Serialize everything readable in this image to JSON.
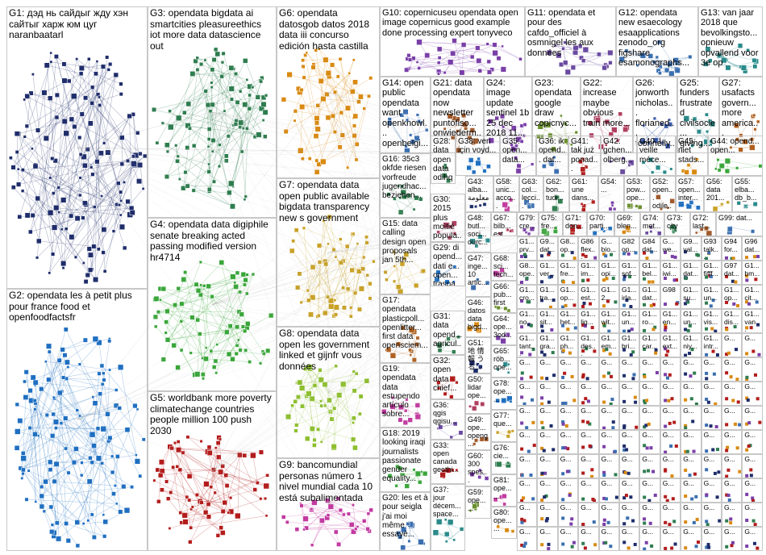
{
  "graph": {
    "edge_color": "#b4b4b4",
    "groups": [
      {
        "id": "G1",
        "label": "G1: дэд нь сайдыг жду хэн сайтыг харж юм цуг naranbaatarl",
        "color": "#1f2d6b"
      },
      {
        "id": "G2",
        "label": "G2: opendata les à petit plus pour france food et openfoodfactsfr",
        "color": "#1f6fc1"
      },
      {
        "id": "G3",
        "label": "G3: opendata bigdata ai smartcities pleasureethics iot more data datascience out",
        "color": "#2f7d4f"
      },
      {
        "id": "G4",
        "label": "G4: opendata data digiphile senate breaking acted passing modified version hr4714",
        "color": "#3aa63a"
      },
      {
        "id": "G5",
        "label": "G5: worldbank more poverty climatechange countries people million 100 push 2030",
        "color": "#b31c1c"
      },
      {
        "id": "G6",
        "label": "G6: opendata datosgob datos 2018 data iii concurso edición hasta castilla",
        "color": "#d98a12"
      },
      {
        "id": "G7",
        "label": "G7: opendata data open public available bigdata transparency new s government",
        "color": "#c9a227"
      },
      {
        "id": "G8",
        "label": "G8: opendata data open les government linked et gijnfr vous données",
        "color": "#8dbf2e"
      },
      {
        "id": "G9",
        "label": "G9: bancomundial personas número 1 nivel mundial cada 10 está subalimentada",
        "color": "#c23aa0"
      },
      {
        "id": "G10",
        "label": "G10: copernicuseu opendata open image copernicus good example done processing expert tonyveco",
        "color": "#7a3fa8"
      },
      {
        "id": "G11",
        "label": "G11: opendata et pour des cafdo_officiel à osmnigel les aux données",
        "color": "#6a4aa0"
      },
      {
        "id": "G12",
        "label": "G12: opendata new esaecology esaapplications zenodo_org figshare esamonographs...",
        "color": "#3b6fb0"
      },
      {
        "id": "G13",
        "label": "G13: van jaar 2018 que bevolkingsto... opnieuw opvallend voor 3e op",
        "color": "#2a8a8a"
      },
      {
        "id": "G14",
        "label": "G14: open public opendata want openknowl... openbelgi...",
        "color": "#3b6fb0"
      },
      {
        "id": "G21",
        "label": "G21: data opendata now newsletter puntofiso... onwiederm...",
        "color": "#a05a2c"
      },
      {
        "id": "G24",
        "label": "G24: image update sentinel 1b 25 dec 2018 11...",
        "color": "#7a3fa8"
      },
      {
        "id": "G23",
        "label": "G23: opendata google draw copicnyc...",
        "color": "#6a8f2e"
      },
      {
        "id": "G22",
        "label": "G22: increase maybe obvious train more...",
        "color": "#b04060"
      },
      {
        "id": "G26",
        "label": "G26: jonworth nicholas... florianed... tconnelly...",
        "color": "#4060b0"
      },
      {
        "id": "G25",
        "label": "G25: funders frustrated civilsocie... giving...",
        "color": "#2a8a8a"
      },
      {
        "id": "G27",
        "label": "G27: usafacts govern... more america...",
        "color": "#b06020"
      },
      {
        "id": "G16",
        "label": "G16: 35c3 okfde riesen vorfreude jugendhac... beziehen...",
        "color": "#2f7d4f"
      },
      {
        "id": "G28",
        "label": "G28: data opendata odihq open...",
        "color": "#2f7d4f"
      },
      {
        "id": "G38",
        "label": "G38: veri için voyd...",
        "color": "#1f6fc1"
      },
      {
        "id": "G35",
        "label": "G35: open... data...",
        "color": "#7a3fa8"
      },
      {
        "id": "G36",
        "label": "G36: ik opend... dat...",
        "color": "#3b6fb0"
      },
      {
        "id": "G41",
        "label": "G41: tak już ponad...",
        "color": "#b31c1c"
      },
      {
        "id": "G42",
        "label": "G42: gchen... olberg...",
        "color": "#6a4aa0"
      },
      {
        "id": "G40",
        "label": "G40: l veille méce...",
        "color": "#2a8a8a"
      },
      {
        "id": "G45",
        "label": "G45: niet stads...",
        "color": "#d98a12"
      },
      {
        "id": "G44",
        "label": "G44: opend... open...",
        "color": "#3aa63a"
      },
      {
        "id": "G30",
        "label": "G30: 2015 plus moitié popula...",
        "color": "#b04060"
      },
      {
        "id": "G43",
        "label": "G43: alba... معلومة",
        "color": "#1f2d6b"
      },
      {
        "id": "G58",
        "label": "G58: unic... acco...",
        "color": "#c23aa0"
      },
      {
        "id": "G63",
        "label": "G63: col... lecci...",
        "color": "#3b6fb0"
      },
      {
        "id": "G62",
        "label": "G62: bon... tudi...",
        "color": "#2f7d4f"
      },
      {
        "id": "G61",
        "label": "G61: une dans...",
        "color": "#b31c1c"
      },
      {
        "id": "G54",
        "label": "G54: ...",
        "color": "#7a3fa8"
      },
      {
        "id": "G53",
        "label": "G53: pow... ope...",
        "color": "#6a8f2e"
      },
      {
        "id": "G52",
        "label": "G52: open... odile...",
        "color": "#a05a2c"
      },
      {
        "id": "G57",
        "label": "G57: open... inter...",
        "color": "#1f6fc1"
      },
      {
        "id": "G56",
        "label": "G56: data 201...",
        "color": "#c9a227"
      },
      {
        "id": "G55",
        "label": "G55: elba... db_b...",
        "color": "#2a8a8a"
      },
      {
        "id": "G15",
        "label": "G15: data calling design open proposals jan 5th...",
        "color": "#c9a227"
      },
      {
        "id": "G48",
        "label": "G48: butl... soci... ourc...",
        "color": "#2a8a8a"
      },
      {
        "id": "G67",
        "label": "G67: bilb... est...",
        "color": "#b04060"
      },
      {
        "id": "G79",
        "label": "G79: cre... ...",
        "color": "#7a3fa8"
      },
      {
        "id": "G75",
        "label": "G75: fre... ...",
        "color": "#3aa63a"
      },
      {
        "id": "G71",
        "label": "G71: don...",
        "color": "#b31c1c"
      },
      {
        "id": "G70",
        "label": "G70: parti...",
        "color": "#1f6fc1"
      },
      {
        "id": "G69",
        "label": "G69: blen...",
        "color": "#d98a12"
      },
      {
        "id": "G74",
        "label": "G74: met...",
        "color": "#6a4aa0"
      },
      {
        "id": "G73",
        "label": "G73: city",
        "color": "#2f7d4f"
      },
      {
        "id": "G72",
        "label": "G72: last...",
        "color": "#a05a2c"
      },
      {
        "id": "G99",
        "label": "G99: dat...",
        "color": "#3b6fb0"
      },
      {
        "id": "G29",
        "label": "G29: di opend... dati e... open... traspa...",
        "color": "#1f6fc1"
      },
      {
        "id": "G68",
        "label": "G68: sci... tech...",
        "color": "#c23aa0"
      },
      {
        "id": "G17",
        "label": "G17: opendata plasticpoll... openlitter... first data opensciem...",
        "color": "#b06020"
      },
      {
        "id": "G47",
        "label": "G47: inge... 10 artic...",
        "color": "#3b6fb0"
      },
      {
        "id": "G66",
        "label": "G66: pub... first",
        "color": "#6a8f2e"
      },
      {
        "id": "G31",
        "label": "G31: data opend... agricul...",
        "color": "#2f7d4f"
      },
      {
        "id": "G46",
        "label": "G46: datos data bigd...",
        "color": "#d98a12"
      },
      {
        "id": "G64",
        "label": "G64: ope... 3od...",
        "color": "#7a3fa8"
      },
      {
        "id": "G19",
        "label": "G19: opendata data estupendo artículo sobre...",
        "color": "#c23aa0"
      },
      {
        "id": "G32",
        "label": "G32: open data chief...",
        "color": "#b31c1c"
      },
      {
        "id": "G51",
        "label": "G51: 地 情報 うる...",
        "color": "#1f2d6b"
      },
      {
        "id": "G65",
        "label": "G65: röb... ope...",
        "color": "#2a8a8a"
      },
      {
        "id": "G18",
        "label": "G18: 2019 looking iraqi journalists passionate gender equality...",
        "color": "#3aa63a"
      },
      {
        "id": "G36b",
        "label": "G36: qgis qgisu...",
        "color": "#6a4aa0"
      },
      {
        "id": "G50",
        "label": "G50: lidar ope...",
        "color": "#b04060"
      },
      {
        "id": "G78",
        "label": "G78: ope... ...",
        "color": "#1f6fc1"
      },
      {
        "id": "G49",
        "label": "G49: ope... openg...",
        "color": "#a05a2c"
      },
      {
        "id": "G77",
        "label": "G77: que...",
        "color": "#c9a227"
      },
      {
        "id": "G33",
        "label": "G33: open canada geothi...",
        "color": "#b31c1c"
      },
      {
        "id": "G76",
        "label": "G76: cie...",
        "color": "#2f7d4f"
      },
      {
        "id": "G20",
        "label": "G20: les et à pour seigla j'ai moi même essayé...",
        "color": "#3b6fb0"
      },
      {
        "id": "G60",
        "label": "G60: 300 spes...",
        "color": "#7a3fa8"
      },
      {
        "id": "G81",
        "label": "G81: ope... ...",
        "color": "#c23aa0"
      },
      {
        "id": "G37",
        "label": "G37: jour décem... space...",
        "color": "#2a8a8a"
      },
      {
        "id": "G59",
        "label": "G59: ope... ...",
        "color": "#6a8f2e"
      },
      {
        "id": "G80",
        "label": "G80: ope... ...",
        "color": "#d98a12"
      }
    ],
    "small_labels": [
      "G1... prv...",
      "G9... dat...",
      "G8... op...",
      "G86 flex...",
      "G... bio...",
      "G82 op...",
      "G84 dat...",
      "G... we...",
      "G9... val...",
      "G93 talk...",
      "G94 for...",
      "G96 dat...",
      "G8... ope...",
      "G1... ver...",
      "G1... fre...",
      "G1... im...",
      "G1... opi...",
      "G1... sof...",
      "G1... bel...",
      "G1... iwi...",
      "G1... dat...",
      "G1... fifff...",
      "G97 dat...",
      "G1... bm...",
      "G1... cro...",
      "G1... tra...",
      "G1... op...",
      "G1... est...",
      "G1... 2...",
      "G1... irla...",
      "G1... dat...",
      "G98",
      "G1... su...",
      "G1... un...",
      "G1... op...",
      "G1... cit...",
      "G1... no...",
      "G1... sit...",
      "G1... het...",
      "G1... lig...",
      "G1... wit...",
      "G1... un...",
      "G1... ro...",
      "G1... en...",
      "G1... un...",
      "G1... vis...",
      "G1... dis...",
      "G1... van...",
      "G1... tant...",
      "G1... gra...",
      "G1... ph...",
      "G1... des...",
      "G1... em...",
      "G1... bri...",
      "G1... car...",
      "G1... ext...",
      "G1... niy...",
      "G1... intr..."
    ]
  }
}
